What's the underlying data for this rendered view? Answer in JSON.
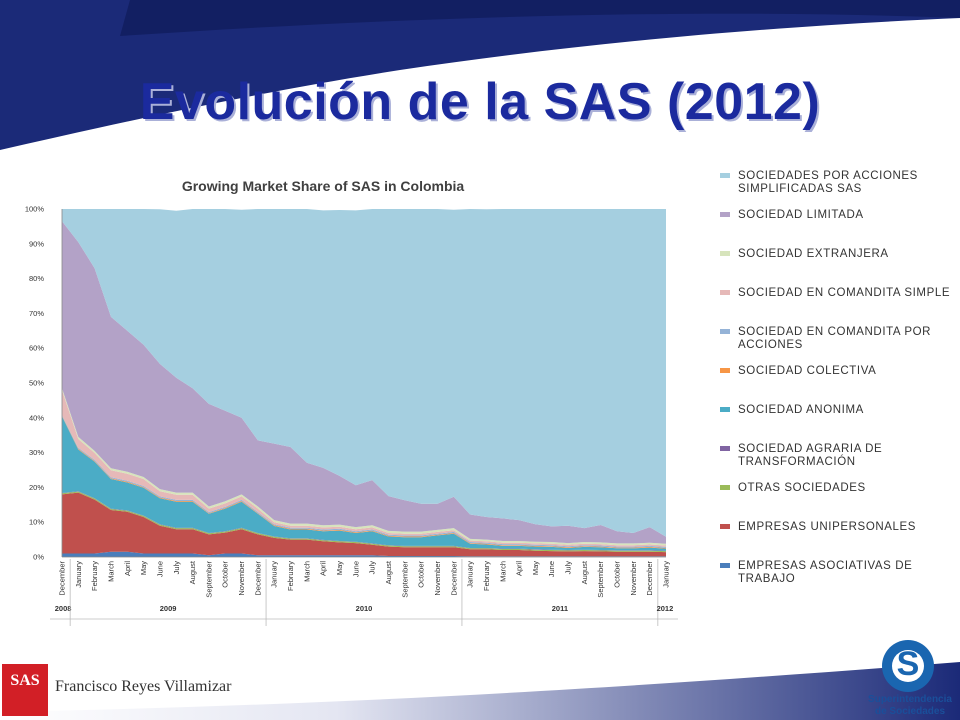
{
  "slide": {
    "title": "Evolución de la SAS (2012)",
    "author": "Francisco Reyes Villamizar",
    "logo_left_text": "SAS",
    "logo_right_line1": "Superintendencia",
    "logo_right_line2": "de Sociedades"
  },
  "colors": {
    "band_dark": "#1b2a78",
    "title": "#1b2a9e"
  },
  "chart_data": {
    "type": "area",
    "stacked": "percent",
    "title": "Growing Market Share of SAS in Colombia",
    "ylim": [
      0,
      100
    ],
    "y_ticks": [
      "0%",
      "10%",
      "20%",
      "30%",
      "40%",
      "50%",
      "60%",
      "70%",
      "80%",
      "90%",
      "100%"
    ],
    "month_labels": [
      "December",
      "January",
      "February",
      "March",
      "April",
      "May",
      "June",
      "July",
      "August",
      "September",
      "October",
      "November",
      "December",
      "January",
      "February",
      "March",
      "April",
      "May",
      "June",
      "July",
      "August",
      "September",
      "October",
      "November",
      "December",
      "January",
      "February",
      "March",
      "April",
      "May",
      "June",
      "July",
      "August",
      "September",
      "October",
      "November",
      "December",
      "January"
    ],
    "years": [
      {
        "label": "2008",
        "start": 0,
        "end": 0
      },
      {
        "label": "2009",
        "start": 1,
        "end": 12
      },
      {
        "label": "2010",
        "start": 13,
        "end": 24
      },
      {
        "label": "2011",
        "start": 25,
        "end": 36
      },
      {
        "label": "2012",
        "start": 37,
        "end": 37
      }
    ],
    "series": [
      {
        "name": "EMPRESAS ASOCIATIVAS DE TRABAJO",
        "color": "#4a7ebb",
        "values": [
          1,
          1,
          1,
          1.5,
          1.5,
          1,
          1,
          1,
          1,
          0.5,
          1,
          1,
          0.5,
          0.5,
          0.5,
          0.5,
          0.5,
          0.5,
          0.5,
          0.5,
          0.3,
          0.3,
          0.3,
          0.3,
          0.3,
          0.2,
          0.2,
          0.2,
          0.2,
          0.2,
          0.2,
          0.2,
          0.2,
          0.2,
          0.2,
          0.2,
          0.2,
          0.2
        ]
      },
      {
        "name": "EMPRESAS UNIPERSONALES",
        "color": "#c0504d",
        "values": [
          17,
          17.5,
          15.5,
          12,
          11.5,
          10.5,
          8,
          7,
          7,
          6,
          6,
          7,
          6,
          5,
          4.5,
          4.5,
          4,
          3.7,
          3.5,
          3,
          2.7,
          2.5,
          2.5,
          2.5,
          2.5,
          2,
          2,
          1.8,
          1.8,
          1.6,
          1.5,
          1.4,
          1.5,
          1.4,
          1.3,
          1.3,
          1.3,
          1.2
        ]
      },
      {
        "name": "OTRAS SOCIEDADES",
        "color": "#9bbb59",
        "values": [
          0.3,
          0.3,
          0.3,
          0.3,
          0.3,
          0.3,
          0.3,
          0.3,
          0.3,
          0.3,
          0.3,
          0.3,
          0.3,
          0.3,
          0.3,
          0.3,
          0.3,
          0.3,
          0.3,
          0.3,
          0.3,
          0.3,
          0.3,
          0.3,
          0.3,
          0.3,
          0.3,
          0.3,
          0.3,
          0.3,
          0.3,
          0.3,
          0.3,
          0.3,
          0.3,
          0.3,
          0.3,
          0.3
        ]
      },
      {
        "name": "SOCIEDAD AGRARIA DE TRANSFORMACIÓN",
        "color": "#8064a2",
        "values": [
          0.1,
          0.1,
          0.1,
          0.1,
          0.1,
          0.1,
          0.1,
          0.1,
          0.1,
          0.1,
          0.1,
          0.1,
          0.1,
          0.1,
          0.1,
          0.1,
          0.1,
          0.1,
          0.1,
          0.1,
          0.1,
          0.1,
          0.1,
          0.1,
          0.1,
          0.1,
          0.1,
          0.1,
          0.1,
          0.1,
          0.1,
          0.1,
          0.1,
          0.1,
          0.1,
          0.1,
          0.1,
          0.1
        ]
      },
      {
        "name": "SOCIEDAD ANONIMA",
        "color": "#4bacc6",
        "values": [
          22,
          12,
          10.5,
          8.5,
          8,
          8,
          7.5,
          7.5,
          7.5,
          5.5,
          6.5,
          7.5,
          5.5,
          3,
          2.5,
          2.5,
          2.5,
          3,
          2.5,
          3.5,
          2.5,
          2.5,
          2.5,
          3,
          3.5,
          1.2,
          1,
          0.8,
          0.8,
          0.8,
          0.8,
          0.6,
          0.8,
          0.8,
          0.6,
          0.6,
          0.8,
          0.6
        ]
      },
      {
        "name": "SOCIEDAD COLECTIVA",
        "color": "#f79646",
        "values": [
          0.2,
          0.2,
          0.2,
          0.2,
          0.2,
          0.2,
          0.2,
          0.2,
          0.2,
          0.2,
          0.2,
          0.2,
          0.2,
          0.2,
          0.2,
          0.2,
          0.2,
          0.2,
          0.2,
          0.2,
          0.2,
          0.2,
          0.2,
          0.2,
          0.2,
          0.2,
          0.2,
          0.2,
          0.2,
          0.2,
          0.2,
          0.2,
          0.2,
          0.2,
          0.2,
          0.2,
          0.2,
          0.2
        ]
      },
      {
        "name": "SOCIEDAD EN COMANDITA POR ACCIONES",
        "color": "#95b3d7",
        "values": [
          0.3,
          0.3,
          0.3,
          0.3,
          0.3,
          0.3,
          0.3,
          0.3,
          0.3,
          0.3,
          0.3,
          0.3,
          0.3,
          0.3,
          0.3,
          0.3,
          0.3,
          0.3,
          0.3,
          0.3,
          0.3,
          0.3,
          0.3,
          0.3,
          0.3,
          0.3,
          0.3,
          0.3,
          0.3,
          0.3,
          0.3,
          0.3,
          0.3,
          0.3,
          0.3,
          0.3,
          0.3,
          0.3
        ]
      },
      {
        "name": "SOCIEDAD EN COMANDITA SIMPLE",
        "color": "#e6b9b8",
        "values": [
          7,
          2.5,
          2,
          2,
          2,
          2,
          1.5,
          1.5,
          1.5,
          1,
          1,
          1,
          1,
          0.6,
          0.6,
          0.6,
          0.6,
          0.6,
          0.6,
          0.6,
          0.5,
          0.5,
          0.5,
          0.5,
          0.5,
          0.4,
          0.4,
          0.4,
          0.4,
          0.4,
          0.4,
          0.4,
          0.4,
          0.4,
          0.4,
          0.4,
          0.4,
          0.4
        ]
      },
      {
        "name": "SOCIEDAD EXTRANJERA",
        "color": "#d7e4bc",
        "values": [
          0.6,
          0.6,
          0.6,
          0.6,
          0.6,
          0.6,
          0.6,
          0.6,
          0.6,
          0.6,
          0.6,
          0.6,
          0.6,
          0.6,
          0.6,
          0.6,
          0.6,
          0.6,
          0.6,
          0.6,
          0.6,
          0.6,
          0.6,
          0.6,
          0.6,
          0.5,
          0.5,
          0.5,
          0.5,
          0.5,
          0.5,
          0.5,
          0.5,
          0.5,
          0.5,
          0.5,
          0.5,
          0.5
        ]
      },
      {
        "name": "SOCIEDAD LIMITADA",
        "color": "#b3a2c7",
        "values": [
          48,
          56,
          52.5,
          43.5,
          40.5,
          38,
          36,
          33,
          30,
          29.5,
          26,
          22,
          19,
          22,
          22,
          17.5,
          16.5,
          14,
          12,
          13,
          10,
          9,
          8,
          7.5,
          9,
          7,
          6.5,
          6.5,
          6,
          5,
          4.5,
          5,
          4,
          5,
          3.5,
          3,
          4.5,
          2
        ]
      },
      {
        "name": "SOCIEDADES POR ACCIONES SIMPLIFICADAS SAS",
        "color": "#a5cfe0",
        "values": [
          3.5,
          9.5,
          17,
          31,
          35,
          39.4,
          44.4,
          48,
          51.5,
          56,
          58,
          59.8,
          66.8,
          68,
          68.5,
          73,
          74,
          76.4,
          79,
          78,
          82.5,
          83.7,
          84.7,
          85,
          82.5,
          88,
          88.4,
          88.9,
          89.4,
          90.8,
          91.2,
          91.7,
          92.4,
          91.5,
          92.9,
          93.4,
          91.7,
          94.2
        ]
      }
    ]
  }
}
